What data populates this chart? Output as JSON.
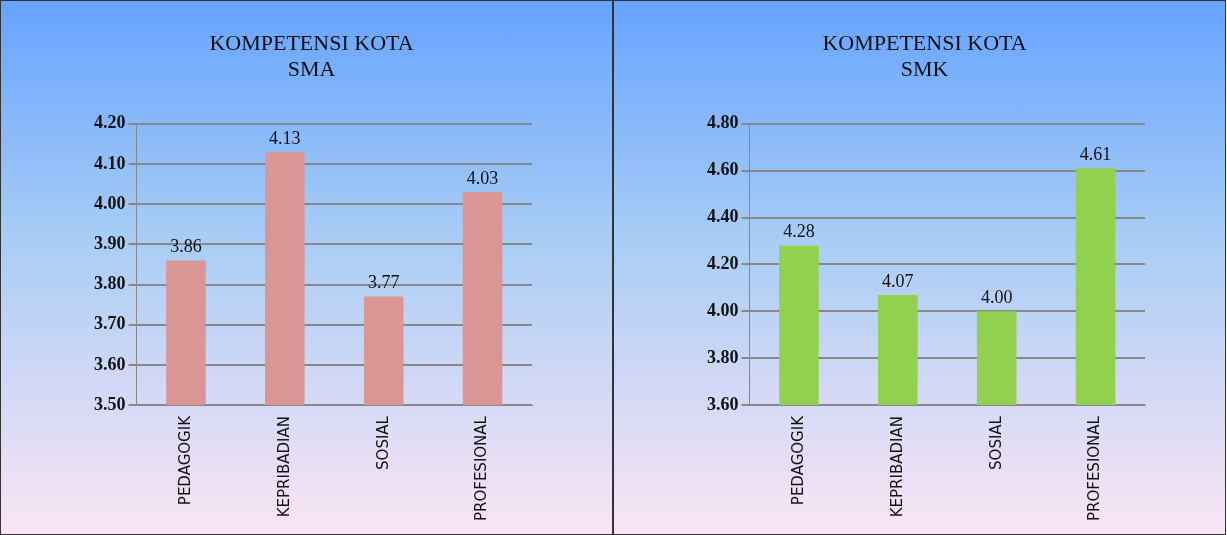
{
  "chart_data": [
    {
      "type": "bar",
      "title": "KOMPETENSI KOTA\nSMA",
      "categories": [
        "PEDAGOGIK",
        "KEPRIBADIAN",
        "SOSIAL",
        "PROFESIONAL"
      ],
      "values": [
        3.86,
        4.13,
        3.77,
        4.03
      ],
      "color": "#d99694",
      "value_labels": [
        "3.86",
        "4.13",
        "3.77",
        "4.03"
      ],
      "ylim": [
        3.5,
        4.2
      ],
      "yticks": [
        {
          "value": 3.5,
          "label": "3.50"
        },
        {
          "value": 3.6,
          "label": "3.60"
        },
        {
          "value": 3.7,
          "label": "3.70"
        },
        {
          "value": 3.8,
          "label": "3.80"
        },
        {
          "value": 3.9,
          "label": "3.90"
        },
        {
          "value": 4.0,
          "label": "4.00"
        },
        {
          "value": 4.1,
          "label": "4.10"
        },
        {
          "value": 4.2,
          "label": "4.20"
        }
      ],
      "grid": "y",
      "legend": false
    },
    {
      "type": "bar",
      "title": "KOMPETENSI KOTA\nSMK",
      "categories": [
        "PEDAGOGIK",
        "KEPRIBADIAN",
        "SOSIAL",
        "PROFESIONAL"
      ],
      "values": [
        4.28,
        4.07,
        4.0,
        4.61
      ],
      "color": "#92d050",
      "value_labels": [
        "4.28",
        "4.07",
        "4.00",
        "4.61"
      ],
      "ylim": [
        3.6,
        4.8
      ],
      "yticks": [
        {
          "value": 3.6,
          "label": "3.60"
        },
        {
          "value": 3.8,
          "label": "3.80"
        },
        {
          "value": 4.0,
          "label": "4.00"
        },
        {
          "value": 4.2,
          "label": "4.20"
        },
        {
          "value": 4.4,
          "label": "4.40"
        },
        {
          "value": 4.6,
          "label": "4.60"
        },
        {
          "value": 4.8,
          "label": "4.80"
        }
      ],
      "grid": "y",
      "legend": false
    }
  ]
}
